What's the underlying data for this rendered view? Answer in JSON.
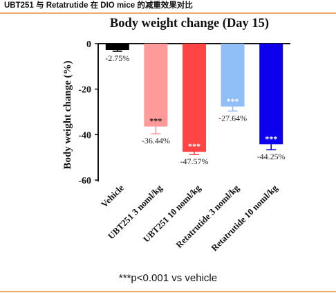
{
  "header": {
    "caption": "UBT251 与 Retatrutide 在 DIO mice 的减重效果对比"
  },
  "footnote": "***p<0.001 vs vehicle",
  "chart_data": {
    "type": "bar",
    "title": "Body weight change (Day 15)",
    "ylabel": "Body weight change (%)",
    "xlabel": "",
    "ylim": [
      -60,
      0
    ],
    "yticks": [
      0,
      -20,
      -40,
      -60
    ],
    "grid": false,
    "categories": [
      "Vehicle",
      "UBT251 3 noml/kg",
      "UBT251 10 noml/kg",
      "Retatrutide 3 noml/kg",
      "Retatrutide 10 noml/kg"
    ],
    "values": [
      -2.75,
      -36.44,
      -47.57,
      -27.64,
      -44.25
    ],
    "value_labels": [
      "-2.75%",
      "-36.44%",
      "-47.57%",
      "-27.64%",
      "-44.25%"
    ],
    "significance": [
      "",
      "***",
      "***",
      "***",
      "***"
    ],
    "error": [
      0.6,
      3.2,
      1.2,
      2.0,
      2.4
    ],
    "colors": [
      "#000000",
      "#ff9a9a",
      "#ff4444",
      "#90bff8",
      "#0a00ee"
    ]
  }
}
